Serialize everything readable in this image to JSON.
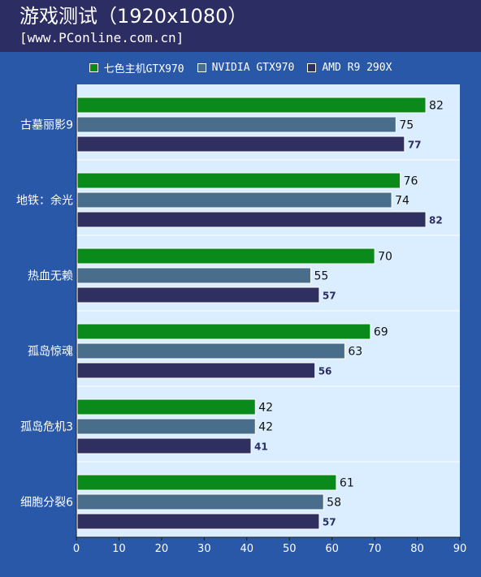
{
  "header": {
    "title": "游戏测试（1920x1080）",
    "subtitle": "[www.PConline.com.cn]"
  },
  "legend": [
    {
      "label": "七色主机GTX970",
      "color": "#0a8a1a"
    },
    {
      "label": "NVIDIA GTX970",
      "color": "#486e8c"
    },
    {
      "label": "AMD R9 290X",
      "color": "#303060"
    }
  ],
  "colors": {
    "header_bg": "#2b2d63",
    "page_bg": "#2a58a8",
    "plot_bg": "#dbeeff"
  },
  "chart_data": {
    "type": "bar",
    "orientation": "horizontal",
    "categories": [
      "古墓丽影9",
      "地铁：余光",
      "热血无赖",
      "孤岛惊魂",
      "孤岛危机3",
      "细胞分裂6"
    ],
    "series": [
      {
        "name": "七色主机GTX970",
        "color": "#0a8a1a",
        "values": [
          82,
          76,
          70,
          69,
          42,
          61
        ]
      },
      {
        "name": "NVIDIA GTX970",
        "color": "#486e8c",
        "values": [
          75,
          74,
          55,
          63,
          42,
          58
        ]
      },
      {
        "name": "AMD R9 290X",
        "color": "#303060",
        "values": [
          77,
          82,
          57,
          56,
          41,
          57
        ]
      }
    ],
    "xlim": [
      0,
      90
    ],
    "xticks": [
      0,
      10,
      20,
      30,
      40,
      50,
      60,
      70,
      80,
      90
    ],
    "grid": false,
    "legend_position": "top"
  }
}
